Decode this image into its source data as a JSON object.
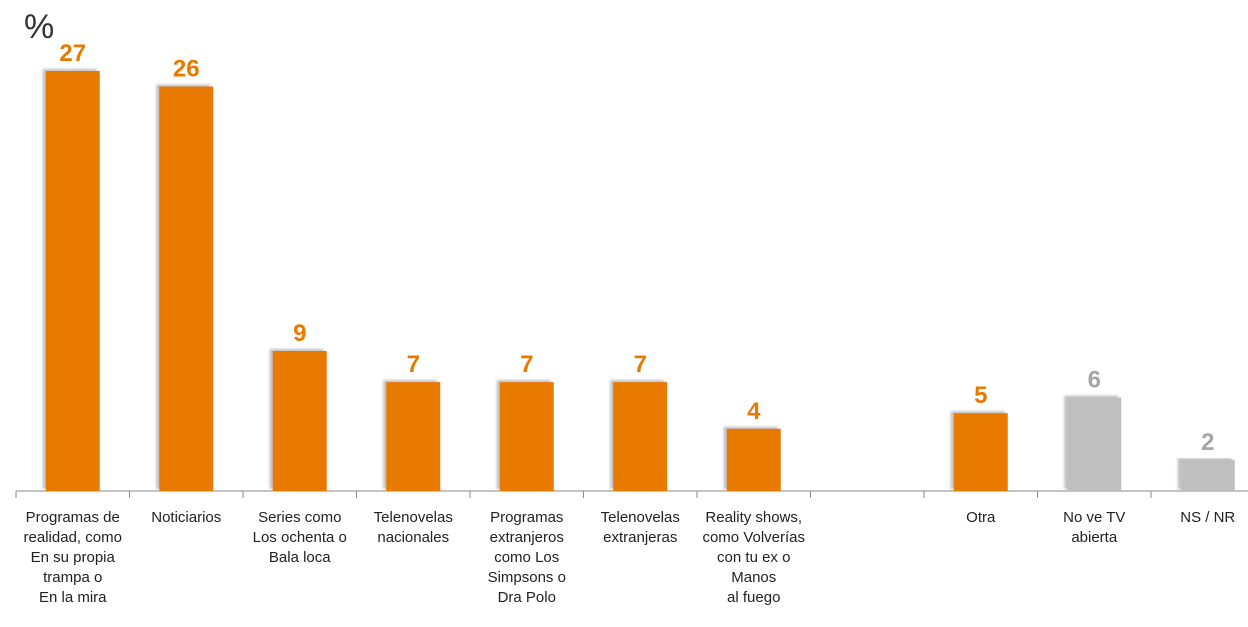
{
  "chart_data": {
    "type": "bar",
    "title": "",
    "ylabel": "%",
    "xlabel": "",
    "ylim": [
      0,
      28
    ],
    "grid": false,
    "legend": "none",
    "categories": [
      "Programas de\nrealidad, como\nEn su propia\ntrampa o\nEn la mira",
      "Noticiarios",
      "Series como\nLos ochenta o\nBala loca",
      "Telenovelas\nnacionales",
      "Programas\nextranjeros\ncomo Los\nSimpsons o\nDra Polo",
      "Telenovelas\nextranjeras",
      "Reality shows,\ncomo Volverías\ncon tu ex o\nManos\nal fuego",
      "",
      "Otra",
      "No ve TV\nabierta",
      "NS / NR"
    ],
    "values": [
      27,
      26,
      9,
      7,
      7,
      7,
      4,
      null,
      5,
      6,
      2
    ],
    "value_labels": [
      "27",
      "26",
      "9",
      "7",
      "7",
      "7",
      "4",
      "",
      "5",
      "6",
      "2"
    ],
    "bar_colors": [
      "#E87A00",
      "#E87A00",
      "#E87A00",
      "#E87A00",
      "#E87A00",
      "#E87A00",
      "#E87A00",
      "",
      "#E87A00",
      "#BFBFBF",
      "#BFBFBF"
    ],
    "label_colors": [
      "#E87A00",
      "#E87A00",
      "#E87A00",
      "#E87A00",
      "#E87A00",
      "#E87A00",
      "#E87A00",
      "",
      "#E87A00",
      "#A6A6A6",
      "#A6A6A6"
    ]
  }
}
